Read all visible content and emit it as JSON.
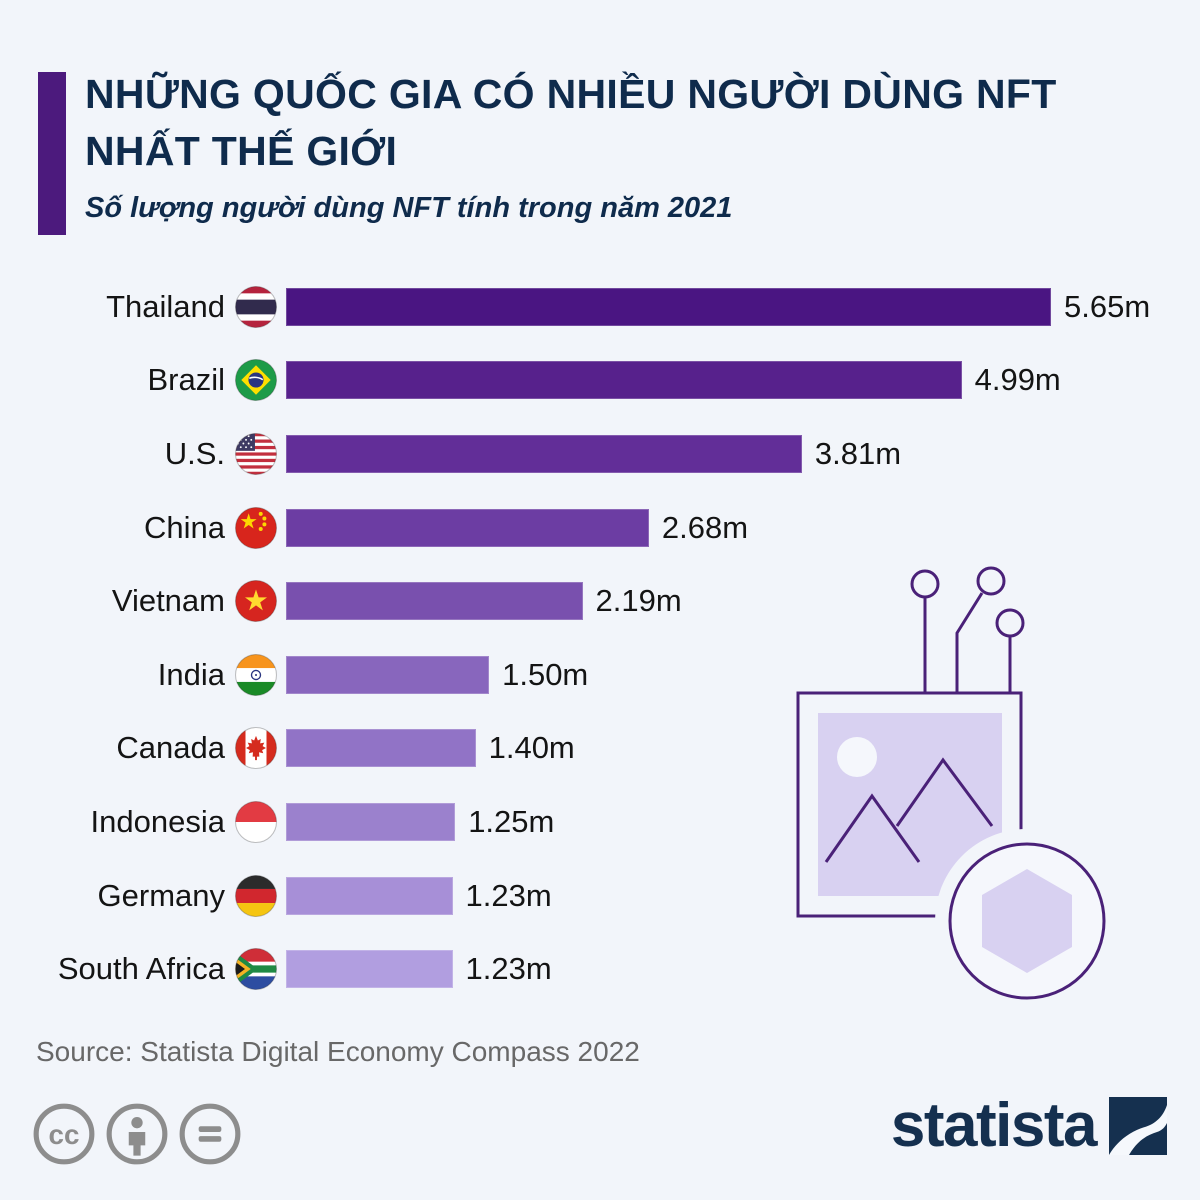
{
  "page": {
    "background": "#f2f5fa"
  },
  "header": {
    "accent_color": "#4c1a7d",
    "title_lines": [
      "NHỮNG QUỐC GIA CÓ NHIỀU NGƯỜI DÙNG NFT",
      "NHẤT THẾ GIỚI"
    ],
    "subtitle": "Số lượng người dùng NFT tính trong năm 2021",
    "title_color": "#0f2b4c"
  },
  "chart_data": {
    "type": "bar",
    "orientation": "horizontal",
    "title": "NHỮNG QUỐC GIA CÓ NHIỀU NGƯỜI DÙNG NFT NHẤT THẾ GIỚI",
    "subtitle": "Số lượng người dùng NFT tính trong năm 2021",
    "unit": "millions of NFT users in 2021",
    "xlim": [
      0,
      5.65
    ],
    "grid": false,
    "legend": false,
    "rows": [
      {
        "country": "Thailand",
        "flag_icon": "thailand-flag-icon",
        "value": 5.65,
        "label": "5.65m",
        "color": "#4a1582"
      },
      {
        "country": "Brazil",
        "flag_icon": "brazil-flag-icon",
        "value": 4.99,
        "label": "4.99m",
        "color": "#57218c"
      },
      {
        "country": "U.S.",
        "flag_icon": "us-flag-icon",
        "value": 3.81,
        "label": "3.81m",
        "color": "#622e98"
      },
      {
        "country": "China",
        "flag_icon": "china-flag-icon",
        "value": 2.68,
        "label": "2.68m",
        "color": "#6c3da3"
      },
      {
        "country": "Vietnam",
        "flag_icon": "vietnam-flag-icon",
        "value": 2.19,
        "label": "2.19m",
        "color": "#7950ae"
      },
      {
        "country": "India",
        "flag_icon": "india-flag-icon",
        "value": 1.5,
        "label": "1.50m",
        "color": "#8866bd"
      },
      {
        "country": "Canada",
        "flag_icon": "canada-flag-icon",
        "value": 1.4,
        "label": "1.40m",
        "color": "#9173c6"
      },
      {
        "country": "Indonesia",
        "flag_icon": "indonesia-flag-icon",
        "value": 1.25,
        "label": "1.25m",
        "color": "#9b81cd"
      },
      {
        "country": "Germany",
        "flag_icon": "germany-flag-icon",
        "value": 1.23,
        "label": "1.23m",
        "color": "#a78fd7"
      },
      {
        "country": "South Africa",
        "flag_icon": "south-africa-flag-icon",
        "value": 1.23,
        "label": "1.23m",
        "color": "#b19ee0"
      }
    ]
  },
  "illustration": {
    "name": "nft-image-illustration",
    "outline_color": "#4a2178",
    "fill_color": "#d8d1f1"
  },
  "footer": {
    "source": "Source: Statista Digital Economy Compass 2022",
    "license_icons": [
      "cc-icon",
      "attribution-icon",
      "equals-icon"
    ],
    "brand": "statista"
  }
}
